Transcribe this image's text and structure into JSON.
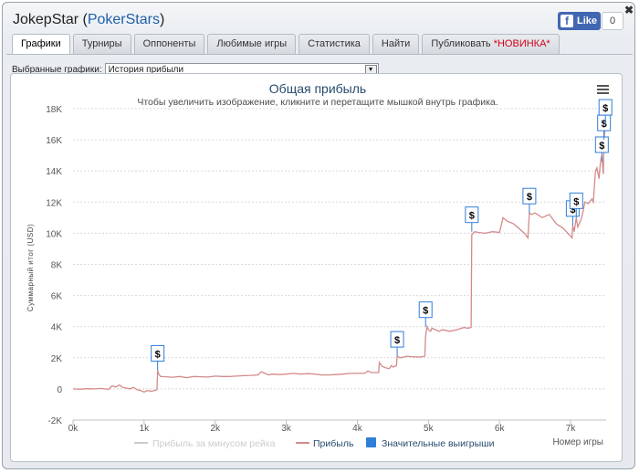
{
  "window": {
    "player": "JokepStar",
    "site": "PokerStars",
    "like_label": "Like",
    "like_count": "0",
    "close_glyph": "✖"
  },
  "tabs": [
    {
      "label": "Графики",
      "active": true
    },
    {
      "label": "Турниры"
    },
    {
      "label": "Оппоненты"
    },
    {
      "label": "Любимые игры"
    },
    {
      "label": "Статистика"
    },
    {
      "label": "Найти"
    },
    {
      "label": "Публиковать",
      "badge": "*НОВИНКА*"
    }
  ],
  "selector": {
    "label": "Выбранные графики:",
    "value": "История прибыли"
  },
  "chart_data": {
    "type": "line",
    "title": "Общая прибыль",
    "subtitle": "Чтобы увеличить изображение, кликните и перетащите мышкой внутрь графика.",
    "ylabel": "Суммарный итог (USD)",
    "xlabel": "Номер игры",
    "xlim": [
      0,
      7500
    ],
    "ylim": [
      -2000,
      18000
    ],
    "x_ticks": [
      "0k",
      "1k",
      "2k",
      "3k",
      "4k",
      "5k",
      "6k",
      "7k"
    ],
    "x_tick_values": [
      0,
      1000,
      2000,
      3000,
      4000,
      5000,
      6000,
      7000
    ],
    "y_ticks": [
      "-2K",
      "0",
      "2K",
      "4K",
      "6K",
      "8K",
      "10K",
      "12K",
      "14K",
      "16K",
      "18K"
    ],
    "y_tick_values": [
      -2000,
      0,
      2000,
      4000,
      6000,
      8000,
      10000,
      12000,
      14000,
      16000,
      18000
    ],
    "grid": true,
    "legend_position": "bottom",
    "legend": [
      {
        "name": "Прибыль за минусом рейка",
        "type": "line",
        "color": "#cccccc",
        "muted": true
      },
      {
        "name": "Прибыль",
        "type": "line",
        "color": "#d48a8a"
      },
      {
        "name": "Значительные выигрыши",
        "type": "square",
        "color": "#2f7ed8"
      }
    ],
    "series": [
      {
        "name": "Прибыль",
        "color": "#d48a8a",
        "points": [
          [
            0,
            0
          ],
          [
            100,
            -20
          ],
          [
            200,
            10
          ],
          [
            300,
            0
          ],
          [
            400,
            30
          ],
          [
            500,
            -30
          ],
          [
            550,
            200
          ],
          [
            600,
            120
          ],
          [
            650,
            250
          ],
          [
            700,
            100
          ],
          [
            800,
            0
          ],
          [
            850,
            100
          ],
          [
            900,
            -50
          ],
          [
            950,
            -100
          ],
          [
            1000,
            -200
          ],
          [
            1050,
            -100
          ],
          [
            1100,
            -150
          ],
          [
            1150,
            -100
          ],
          [
            1180,
            -50
          ],
          [
            1190,
            1200
          ],
          [
            1200,
            1000
          ],
          [
            1230,
            800
          ],
          [
            1300,
            780
          ],
          [
            1400,
            750
          ],
          [
            1500,
            800
          ],
          [
            1600,
            720
          ],
          [
            1700,
            800
          ],
          [
            1800,
            780
          ],
          [
            1900,
            760
          ],
          [
            2000,
            820
          ],
          [
            2100,
            800
          ],
          [
            2200,
            800
          ],
          [
            2300,
            820
          ],
          [
            2400,
            850
          ],
          [
            2500,
            870
          ],
          [
            2600,
            900
          ],
          [
            2650,
            1100
          ],
          [
            2700,
            1000
          ],
          [
            2750,
            900
          ],
          [
            2800,
            950
          ],
          [
            2900,
            920
          ],
          [
            3000,
            950
          ],
          [
            3100,
            1000
          ],
          [
            3200,
            950
          ],
          [
            3300,
            980
          ],
          [
            3400,
            950
          ],
          [
            3500,
            900
          ],
          [
            3600,
            900
          ],
          [
            3700,
            920
          ],
          [
            3800,
            950
          ],
          [
            3900,
            1000
          ],
          [
            4000,
            1000
          ],
          [
            4100,
            1000
          ],
          [
            4150,
            1150
          ],
          [
            4200,
            1050
          ],
          [
            4300,
            1050
          ],
          [
            4310,
            1700
          ],
          [
            4350,
            1450
          ],
          [
            4400,
            1350
          ],
          [
            4450,
            1300
          ],
          [
            4480,
            1500
          ],
          [
            4500,
            1400
          ],
          [
            4550,
            1500
          ],
          [
            4560,
            2100
          ],
          [
            4600,
            2000
          ],
          [
            4700,
            2100
          ],
          [
            4800,
            2050
          ],
          [
            4900,
            2050
          ],
          [
            4950,
            2100
          ],
          [
            4960,
            3400
          ],
          [
            4980,
            4000
          ],
          [
            5000,
            3800
          ],
          [
            5030,
            3700
          ],
          [
            5050,
            3900
          ],
          [
            5100,
            3800
          ],
          [
            5150,
            3700
          ],
          [
            5200,
            3800
          ],
          [
            5300,
            3700
          ],
          [
            5400,
            3800
          ],
          [
            5500,
            3950
          ],
          [
            5550,
            3900
          ],
          [
            5600,
            3950
          ],
          [
            5610,
            9900
          ],
          [
            5650,
            10100
          ],
          [
            5700,
            10050
          ],
          [
            5800,
            10000
          ],
          [
            5900,
            10100
          ],
          [
            6000,
            10050
          ],
          [
            6050,
            11000
          ],
          [
            6100,
            10800
          ],
          [
            6200,
            10600
          ],
          [
            6300,
            10200
          ],
          [
            6350,
            10000
          ],
          [
            6400,
            9700
          ],
          [
            6420,
            11300
          ],
          [
            6450,
            11200
          ],
          [
            6500,
            11300
          ],
          [
            6600,
            11000
          ],
          [
            6700,
            11200
          ],
          [
            6800,
            10600
          ],
          [
            6900,
            10300
          ],
          [
            7000,
            9800
          ],
          [
            7020,
            9700
          ],
          [
            7030,
            10500
          ],
          [
            7050,
            10100
          ],
          [
            7080,
            11000
          ],
          [
            7100,
            10400
          ],
          [
            7150,
            10900
          ],
          [
            7180,
            11500
          ],
          [
            7200,
            12000
          ],
          [
            7250,
            11900
          ],
          [
            7300,
            12200
          ],
          [
            7320,
            12000
          ],
          [
            7350,
            14000
          ],
          [
            7370,
            14200
          ],
          [
            7400,
            13500
          ],
          [
            7420,
            14600
          ],
          [
            7440,
            15000
          ],
          [
            7460,
            13800
          ],
          [
            7470,
            16000
          ],
          [
            7480,
            16500
          ],
          [
            7490,
            16800
          ],
          [
            7500,
            17800
          ]
        ]
      }
    ],
    "big_wins": {
      "name": "Значительные выигрыши",
      "label": "$",
      "points": [
        [
          1190,
          1200
        ],
        [
          4560,
          2100
        ],
        [
          4960,
          4000
        ],
        [
          5610,
          10100
        ],
        [
          6420,
          11300
        ],
        [
          7030,
          10500
        ],
        [
          7080,
          11000
        ],
        [
          7440,
          14600
        ],
        [
          7470,
          16000
        ],
        [
          7490,
          17000
        ]
      ]
    }
  }
}
